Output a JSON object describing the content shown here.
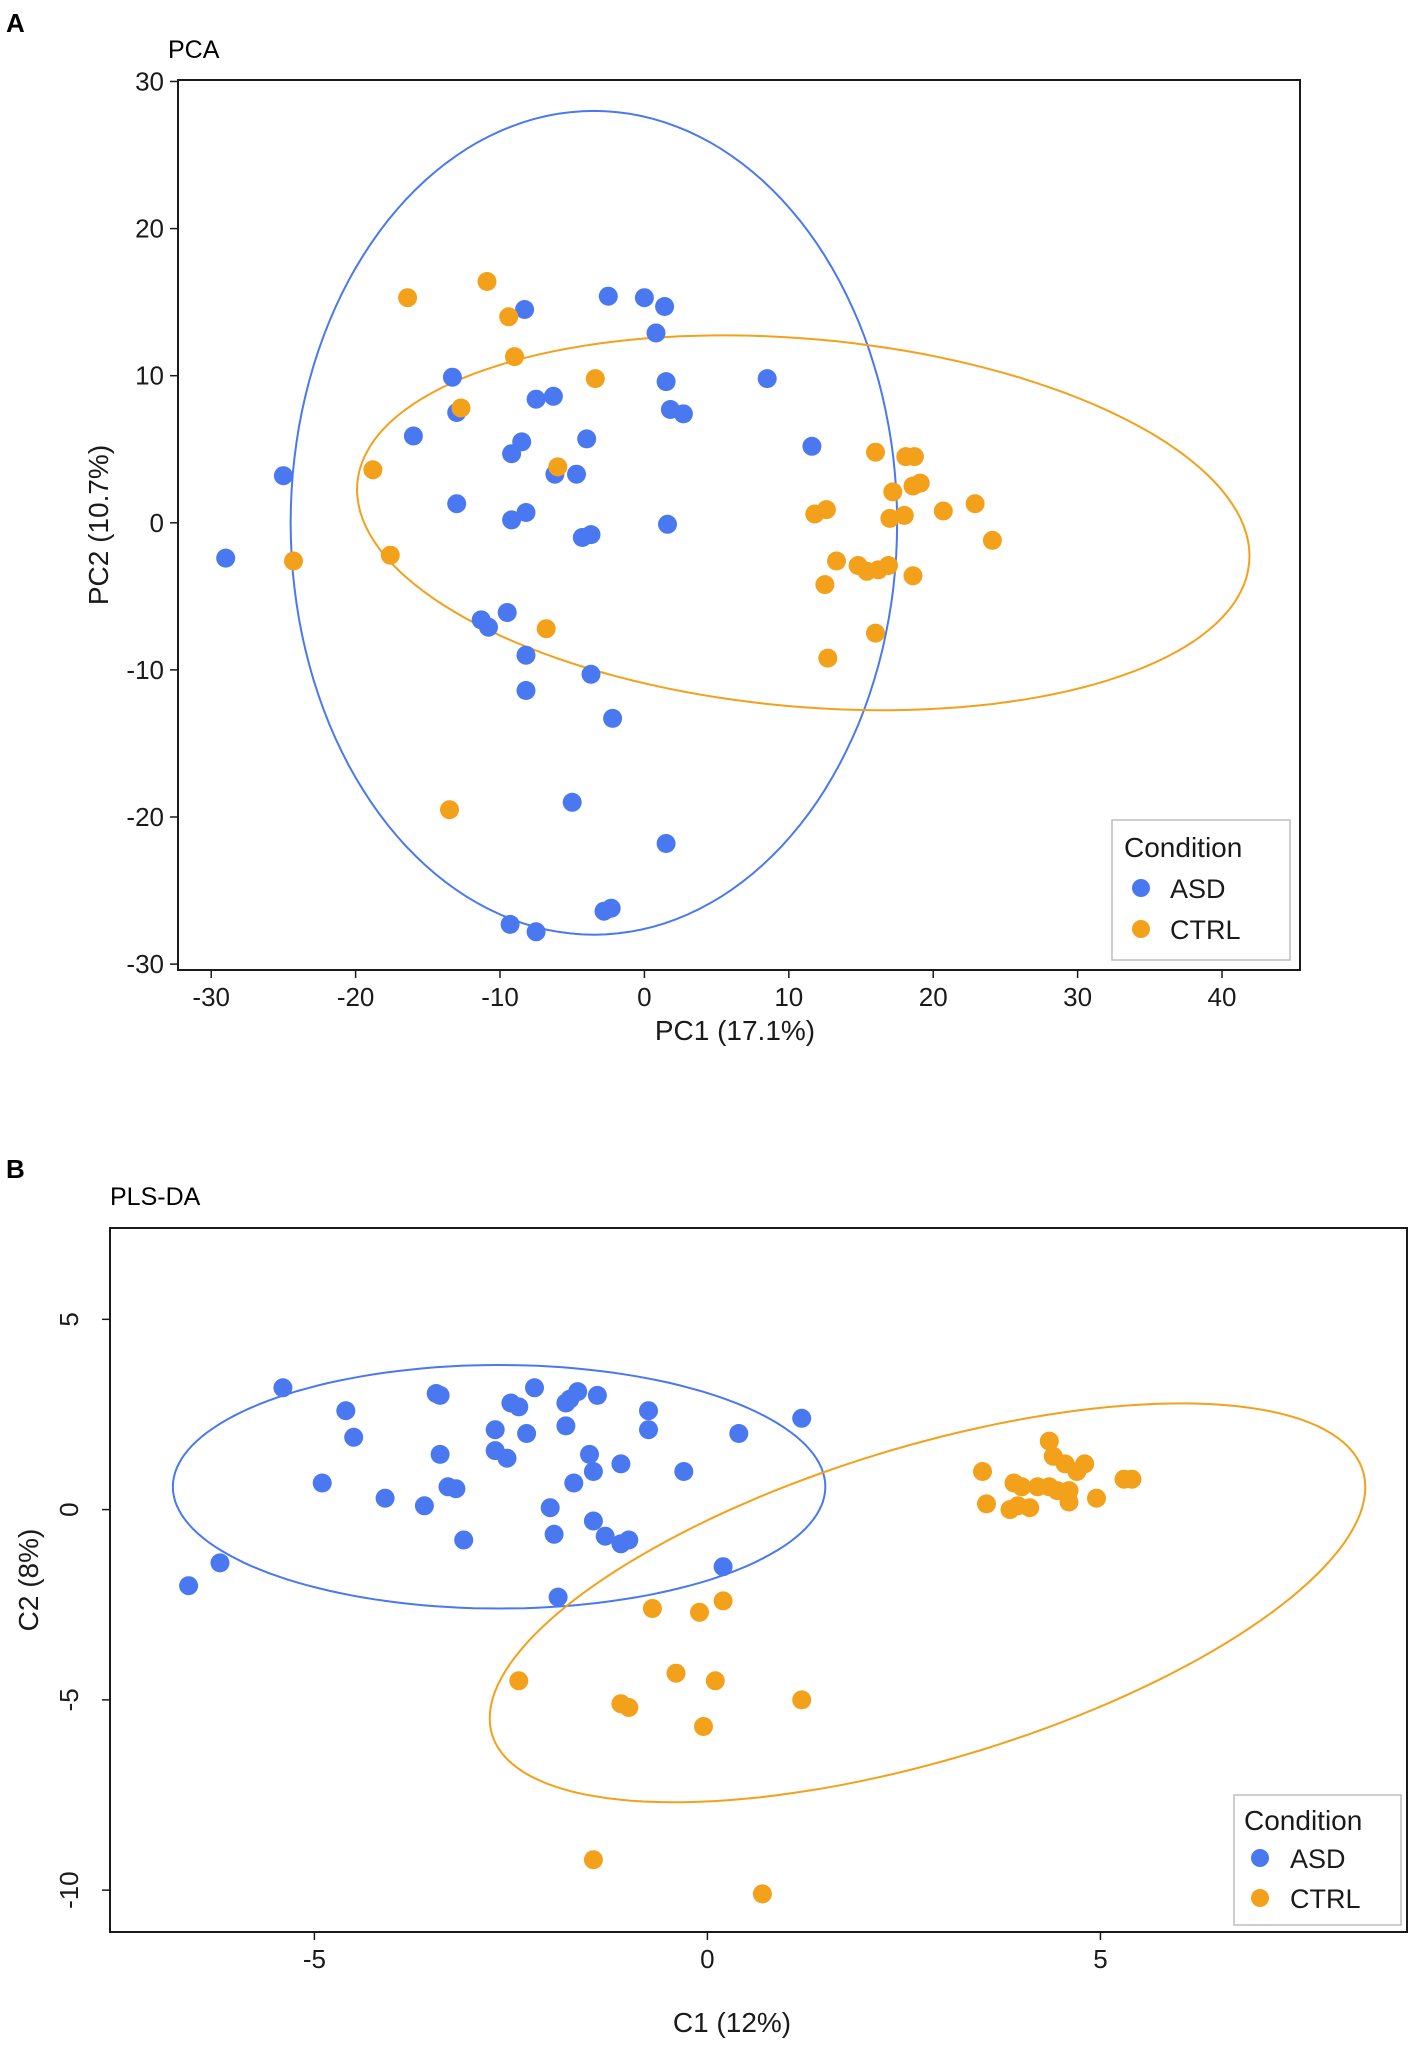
{
  "colors": {
    "ASD": "#4a78f0",
    "CTRL": "#f3a01a",
    "axis": "#1a1a1a"
  },
  "chart_data": [
    {
      "type": "scatter",
      "panel": "A",
      "title": "PCA",
      "xlabel": "PC1 (17.1%)",
      "ylabel": "PC2 (10.7%)",
      "xlim": [
        -32.3,
        45.4
      ],
      "ylim": [
        -30.4,
        30.1
      ],
      "xticks": [
        -30,
        -20,
        -10,
        0,
        10,
        20,
        30,
        40
      ],
      "yticks": [
        -30,
        -20,
        -10,
        0,
        10,
        20,
        30
      ],
      "grid": false,
      "legend": {
        "title": "Condition",
        "entries": [
          "ASD",
          "CTRL"
        ],
        "placement": "bottom-right"
      },
      "series": [
        {
          "name": "ASD",
          "points": [
            [
              -29,
              -2.4
            ],
            [
              -25,
              3.2
            ],
            [
              -16,
              5.9
            ],
            [
              -13.3,
              9.9
            ],
            [
              -13,
              7.5
            ],
            [
              -13,
              1.3
            ],
            [
              -11.3,
              -6.6
            ],
            [
              -10.8,
              -7.1
            ],
            [
              -9.5,
              -6.1
            ],
            [
              -9.2,
              4.7
            ],
            [
              -9.2,
              0.2
            ],
            [
              -8.5,
              5.5
            ],
            [
              -8.3,
              14.5
            ],
            [
              -8.2,
              0.7
            ],
            [
              -8.2,
              -9
            ],
            [
              -8.2,
              -11.4
            ],
            [
              -7.5,
              8.4
            ],
            [
              -6.3,
              8.6
            ],
            [
              -6.2,
              3.3
            ],
            [
              -4.7,
              3.3
            ],
            [
              -4.3,
              -1
            ],
            [
              -4,
              5.7
            ],
            [
              -3.7,
              -0.8
            ],
            [
              -3.7,
              -10.3
            ],
            [
              -2.5,
              15.4
            ],
            [
              -2.2,
              -13.3
            ],
            [
              0,
              15.3
            ],
            [
              0.8,
              12.9
            ],
            [
              1.4,
              14.7
            ],
            [
              1.5,
              9.6
            ],
            [
              1.8,
              7.7
            ],
            [
              2.7,
              7.4
            ],
            [
              1.6,
              -0.1
            ],
            [
              8.5,
              9.8
            ],
            [
              11.6,
              5.2
            ],
            [
              -5,
              -19
            ],
            [
              1.5,
              -21.8
            ],
            [
              -2.3,
              -26.2
            ],
            [
              -2.8,
              -26.4
            ],
            [
              -9.3,
              -27.3
            ],
            [
              -7.5,
              -27.8
            ]
          ]
        },
        {
          "name": "CTRL",
          "points": [
            [
              -24.3,
              -2.6
            ],
            [
              -18.8,
              3.6
            ],
            [
              -17.6,
              -2.2
            ],
            [
              -16.4,
              15.3
            ],
            [
              -12.7,
              7.8
            ],
            [
              -10.9,
              16.4
            ],
            [
              -9.4,
              14
            ],
            [
              -9,
              11.3
            ],
            [
              -6,
              3.8
            ],
            [
              -6.8,
              -7.2
            ],
            [
              -3.4,
              9.8
            ],
            [
              -13.5,
              -19.5
            ],
            [
              11.8,
              0.6
            ],
            [
              12.5,
              -4.2
            ],
            [
              12.6,
              0.9
            ],
            [
              12.7,
              -9.2
            ],
            [
              13.3,
              -2.6
            ],
            [
              14.8,
              -2.9
            ],
            [
              15.4,
              -3.3
            ],
            [
              16,
              4.8
            ],
            [
              16.2,
              -3.2
            ],
            [
              16,
              -7.5
            ],
            [
              16.9,
              -2.9
            ],
            [
              17,
              0.3
            ],
            [
              17.2,
              2.1
            ],
            [
              18,
              0.5
            ],
            [
              18.1,
              4.5
            ],
            [
              18.6,
              2.5
            ],
            [
              18.7,
              4.5
            ],
            [
              18.6,
              -3.6
            ],
            [
              19.1,
              2.7
            ],
            [
              20.7,
              0.8
            ],
            [
              22.9,
              1.3
            ],
            [
              24.1,
              -1.2
            ]
          ]
        }
      ],
      "ellipses": [
        {
          "name": "ASD",
          "center": [
            -3.5,
            0
          ],
          "semi_axes": [
            21,
            28
          ],
          "angle_deg": 0
        },
        {
          "name": "CTRL",
          "center": [
            11,
            0
          ],
          "semi_axes": [
            31,
            12.5
          ],
          "angle_deg": -5
        }
      ]
    },
    {
      "type": "scatter",
      "panel": "B",
      "title": "PLS-DA",
      "xlabel": "C1 (12%)",
      "ylabel": "C2 (8%)",
      "xlim": [
        -7.6,
        8.9
      ],
      "ylim": [
        -11.1,
        7.4
      ],
      "xticks": [
        -5,
        0,
        5
      ],
      "yticks": [
        -10,
        -5,
        0,
        5
      ],
      "grid": false,
      "legend": {
        "title": "Condition",
        "entries": [
          "ASD",
          "CTRL"
        ],
        "placement": "bottom-right"
      },
      "series": [
        {
          "name": "ASD",
          "points": [
            [
              -6.6,
              -2
            ],
            [
              -6.2,
              -1.4
            ],
            [
              -5.4,
              3.2
            ],
            [
              -4.9,
              0.7
            ],
            [
              -4.6,
              2.6
            ],
            [
              -4.5,
              1.9
            ],
            [
              -4.1,
              0.3
            ],
            [
              -3.6,
              0.1
            ],
            [
              -3.45,
              3.05
            ],
            [
              -3.4,
              3
            ],
            [
              -3.4,
              1.45
            ],
            [
              -3.3,
              0.6
            ],
            [
              -3.2,
              0.55
            ],
            [
              -3.1,
              -0.8
            ],
            [
              -2.7,
              1.55
            ],
            [
              -2.7,
              2.1
            ],
            [
              -2.5,
              2.8
            ],
            [
              -2.55,
              1.35
            ],
            [
              -2.4,
              2.7
            ],
            [
              -2.3,
              2
            ],
            [
              -2.2,
              3.2
            ],
            [
              -2,
              0.05
            ],
            [
              -1.95,
              -0.65
            ],
            [
              -1.9,
              -2.3
            ],
            [
              -1.8,
              2.2
            ],
            [
              -1.8,
              2.8
            ],
            [
              -1.75,
              2.9
            ],
            [
              -1.7,
              0.7
            ],
            [
              -1.65,
              3.1
            ],
            [
              -1.5,
              1.45
            ],
            [
              -1.45,
              -0.3
            ],
            [
              -1.45,
              1
            ],
            [
              -1.4,
              3
            ],
            [
              -1.3,
              -0.7
            ],
            [
              -1.1,
              1.2
            ],
            [
              -1.1,
              -0.9
            ],
            [
              -1,
              -0.8
            ],
            [
              -0.75,
              2.6
            ],
            [
              -0.75,
              2.1
            ],
            [
              -0.3,
              1
            ],
            [
              0.2,
              -1.5
            ],
            [
              0.4,
              2
            ],
            [
              1.2,
              2.4
            ]
          ]
        },
        {
          "name": "CTRL",
          "points": [
            [
              -2.4,
              -4.5
            ],
            [
              -1.1,
              -5.1
            ],
            [
              -1,
              -5.2
            ],
            [
              -0.7,
              -2.6
            ],
            [
              -0.4,
              -4.3
            ],
            [
              -0.1,
              -2.7
            ],
            [
              -0.05,
              -5.7
            ],
            [
              0.1,
              -4.5
            ],
            [
              0.2,
              -2.4
            ],
            [
              1.2,
              -5
            ],
            [
              -1.45,
              -9.2
            ],
            [
              0.7,
              -10.1
            ],
            [
              3.5,
              1
            ],
            [
              3.55,
              0.15
            ],
            [
              3.85,
              0
            ],
            [
              3.95,
              0.1
            ],
            [
              3.9,
              0.7
            ],
            [
              4,
              0.6
            ],
            [
              4.1,
              0.05
            ],
            [
              4.2,
              0.6
            ],
            [
              4.35,
              1.8
            ],
            [
              4.4,
              1.4
            ],
            [
              4.35,
              0.6
            ],
            [
              4.45,
              0.5
            ],
            [
              4.55,
              1.2
            ],
            [
              4.6,
              0.2
            ],
            [
              4.6,
              0.5
            ],
            [
              4.7,
              1
            ],
            [
              4.8,
              1.2
            ],
            [
              4.95,
              0.3
            ],
            [
              5.3,
              0.8
            ],
            [
              5.4,
              0.8
            ]
          ]
        }
      ],
      "ellipses": [
        {
          "name": "ASD",
          "center": [
            -2.65,
            0.6
          ],
          "semi_axes": [
            4.15,
            3.2
          ],
          "angle_deg": 0
        },
        {
          "name": "CTRL",
          "center": [
            2.8,
            -2.45
          ],
          "semi_axes": [
            6.8,
            3.5
          ],
          "angle_deg": 42
        }
      ]
    }
  ]
}
